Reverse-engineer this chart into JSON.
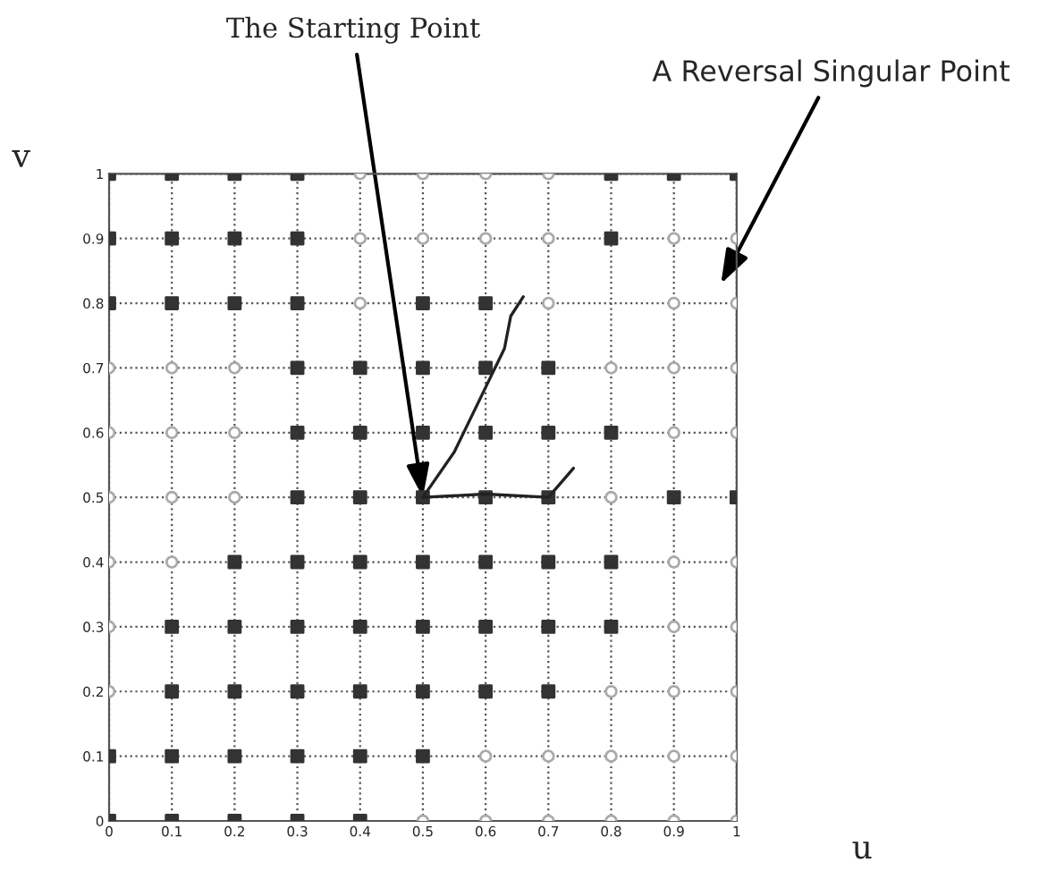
{
  "chart_data": {
    "type": "scatter",
    "xlabel": "u",
    "ylabel": "v",
    "xlim": [
      0,
      1
    ],
    "ylim": [
      0,
      1
    ],
    "xticks": [
      0,
      0.1,
      0.2,
      0.3,
      0.4,
      0.5,
      0.6,
      0.7,
      0.8,
      0.9,
      1
    ],
    "yticks": [
      0,
      0.1,
      0.2,
      0.3,
      0.4,
      0.5,
      0.6,
      0.7,
      0.8,
      0.9,
      1
    ],
    "grid": true,
    "series": [
      {
        "marker": "square",
        "color": "#333333",
        "x": [
          0,
          0.1,
          0.2,
          0.3,
          0.8,
          0.9,
          1,
          0,
          0.1,
          0.2,
          0.3,
          0.8,
          0,
          0.1,
          0.2,
          0.3,
          0.5,
          0.6,
          0.3,
          0.4,
          0.5,
          0.6,
          0.7,
          0.3,
          0.4,
          0.5,
          0.6,
          0.7,
          0.8,
          0.3,
          0.4,
          0.5,
          0.6,
          0.7,
          0.9,
          1,
          0.2,
          0.3,
          0.4,
          0.5,
          0.6,
          0.7,
          0.8,
          0.1,
          0.2,
          0.3,
          0.4,
          0.5,
          0.6,
          0.7,
          0.8,
          0.1,
          0.2,
          0.3,
          0.4,
          0.5,
          0.6,
          0.7,
          0,
          0.1,
          0.2,
          0.3,
          0.4,
          0.5,
          0,
          0.1,
          0.2,
          0.3,
          0.4
        ],
        "values": [
          1,
          1,
          1,
          1,
          1,
          1,
          1,
          0.9,
          0.9,
          0.9,
          0.9,
          0.9,
          0.8,
          0.8,
          0.8,
          0.8,
          0.8,
          0.8,
          0.7,
          0.7,
          0.7,
          0.7,
          0.7,
          0.6,
          0.6,
          0.6,
          0.6,
          0.6,
          0.6,
          0.5,
          0.5,
          0.5,
          0.5,
          0.5,
          0.5,
          0.5,
          0.4,
          0.4,
          0.4,
          0.4,
          0.4,
          0.4,
          0.4,
          0.3,
          0.3,
          0.3,
          0.3,
          0.3,
          0.3,
          0.3,
          0.3,
          0.2,
          0.2,
          0.2,
          0.2,
          0.2,
          0.2,
          0.2,
          0.1,
          0.1,
          0.1,
          0.1,
          0.1,
          0.1,
          0,
          0,
          0,
          0,
          0
        ]
      },
      {
        "marker": "circle",
        "color": "#aaaaaa",
        "x": [
          0.4,
          0.5,
          0.6,
          0.7,
          0.4,
          0.5,
          0.6,
          0.7,
          0.9,
          1,
          0.4,
          0.7,
          0.9,
          1,
          0,
          0.1,
          0.2,
          0.8,
          0.9,
          1,
          0,
          0.1,
          0.2,
          0.9,
          1,
          0,
          0.1,
          0.2,
          0.8,
          0,
          0.1,
          0.9,
          1,
          0,
          0.9,
          1,
          0,
          0.8,
          0.9,
          1,
          0.6,
          0.7,
          0.8,
          0.9,
          1,
          0.5,
          0.6,
          0.7,
          0.8,
          0.9,
          1
        ],
        "values": [
          1,
          1,
          1,
          1,
          0.9,
          0.9,
          0.9,
          0.9,
          0.9,
          0.9,
          0.8,
          0.8,
          0.8,
          0.8,
          0.7,
          0.7,
          0.7,
          0.7,
          0.7,
          0.7,
          0.6,
          0.6,
          0.6,
          0.6,
          0.6,
          0.5,
          0.5,
          0.5,
          0.5,
          0.4,
          0.4,
          0.4,
          0.4,
          0.3,
          0.3,
          0.3,
          0.2,
          0.2,
          0.2,
          0.2,
          0.1,
          0.1,
          0.1,
          0.1,
          0.1,
          0,
          0,
          0,
          0,
          0,
          0
        ]
      },
      {
        "type": "line",
        "color": "#222222",
        "x": [
          0.5,
          0.55,
          0.6,
          0.63,
          0.64,
          0.66
        ],
        "values": [
          0.5,
          0.57,
          0.67,
          0.73,
          0.78,
          0.81
        ]
      },
      {
        "type": "line",
        "color": "#222222",
        "x": [
          0.5,
          0.6,
          0.7,
          0.74
        ],
        "values": [
          0.5,
          0.505,
          0.5,
          0.545
        ]
      }
    ],
    "annotations": [
      {
        "text": "The Starting Point",
        "x": 0.5,
        "y": 0.5
      },
      "A Reversal Singular Point"
    ]
  }
}
